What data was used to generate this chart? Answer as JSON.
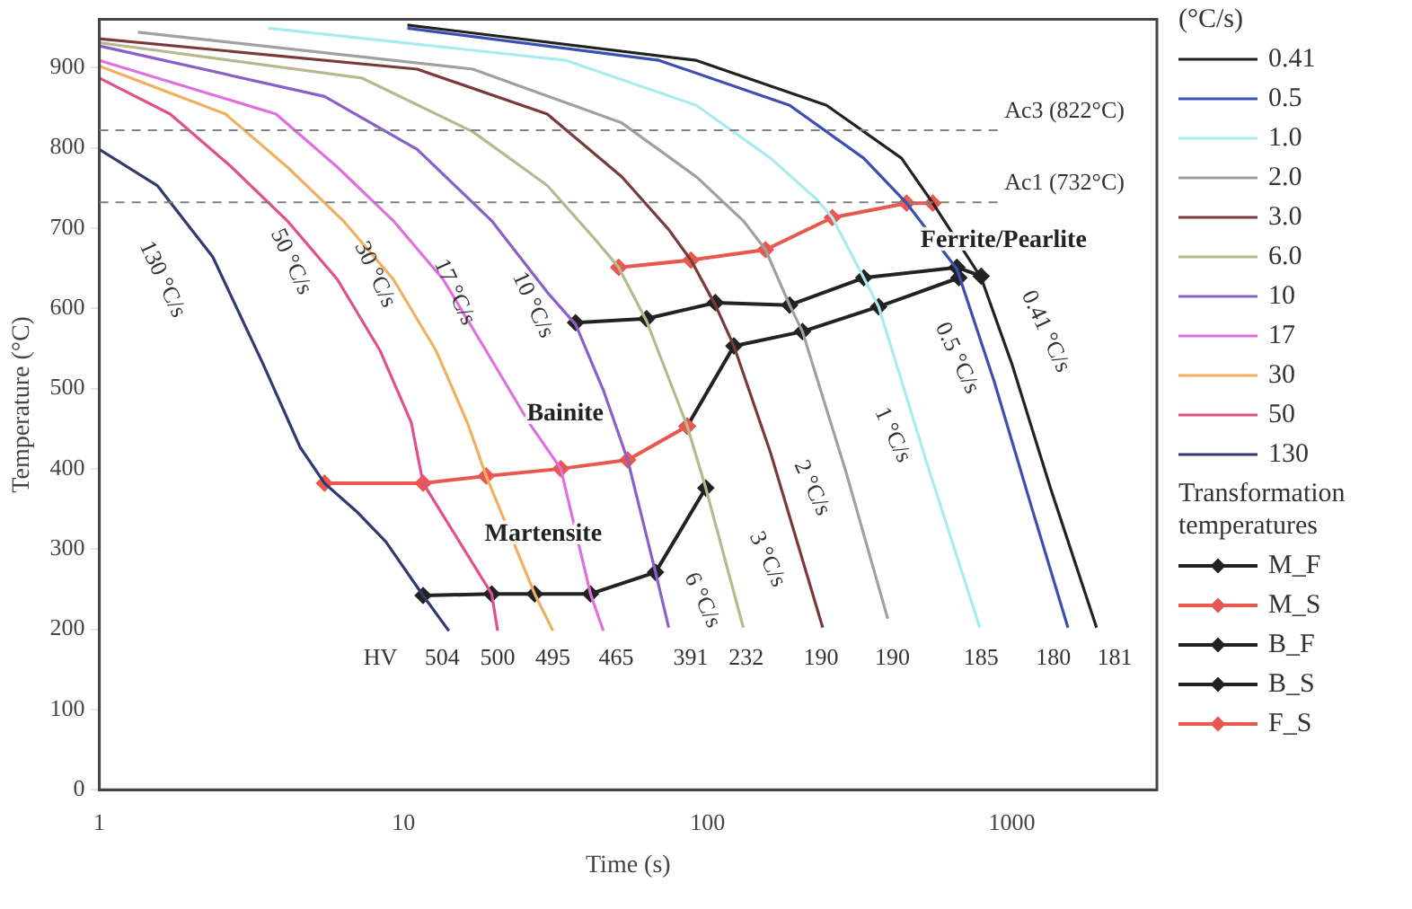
{
  "chart_data": {
    "type": "line",
    "xlabel": "Time (s)",
    "ylabel": "Temperature (°C)",
    "legend_title": "(°C/s)",
    "legend": "right",
    "log": "x",
    "xlim": [
      1,
      3000
    ],
    "xticks": [
      1,
      10,
      100,
      1000
    ],
    "ylim": [
      0,
      960
    ],
    "yticks": [
      0,
      100,
      200,
      300,
      400,
      500,
      600,
      700,
      800,
      900
    ],
    "ref_lines": [
      {
        "axis": "y",
        "value": 822,
        "label": "Ac3 (822°C)",
        "color": "#808080",
        "line_style": "dashed"
      },
      {
        "axis": "y",
        "value": 732,
        "label": "Ac1 (732°C)",
        "color": "#808080",
        "line_style": "dashed"
      }
    ],
    "series": [
      {
        "name": "0.41",
        "color": "#222222",
        "marker": "none",
        "x": [
          10.3,
          91.7,
          246,
          434,
          550,
          793,
          1000,
          1340,
          1900
        ],
        "values": [
          953,
          909,
          853,
          787,
          731,
          638,
          531,
          376,
          202
        ]
      },
      {
        "name": "0.5",
        "color": "#3a4fb0",
        "marker": "none",
        "x": [
          10.3,
          69.2,
          186,
          326,
          451,
          660,
          875,
          1160,
          1530
        ],
        "values": [
          949,
          909,
          853,
          787,
          731,
          649,
          509,
          353,
          202
        ]
      },
      {
        "name": "1.0",
        "color": "#a8ecf0",
        "marker": "none",
        "x": [
          3.6,
          34.2,
          91.7,
          161,
          228,
          257,
          326,
          365,
          535,
          785
        ],
        "values": [
          949,
          909,
          853,
          787,
          736,
          713,
          638,
          602,
          398,
          202
        ]
      },
      {
        "name": "2.0",
        "color": "#a0a0a0",
        "marker": "none",
        "x": [
          1.34,
          16.9,
          52.2,
          91.7,
          131,
          155,
          186,
          205,
          284,
          391
        ],
        "values": [
          944,
          898,
          831,
          764,
          709,
          673,
          604,
          571,
          398,
          213
        ]
      },
      {
        "name": "3.0",
        "color": "#7a3a3a",
        "marker": "none",
        "x": [
          1,
          11.1,
          29.7,
          52.2,
          74.5,
          88.1,
          106,
          122,
          161,
          239
        ],
        "values": [
          936,
          898,
          842,
          764,
          698,
          660,
          604,
          553,
          420,
          202
        ]
      },
      {
        "name": "6.0",
        "color": "#b8b890",
        "marker": "none",
        "x": [
          1,
          7.29,
          16.9,
          29.7,
          42.4,
          51.0,
          63.0,
          85.7,
          98.6,
          131
        ],
        "values": [
          931,
          887,
          820,
          753,
          687,
          651,
          584,
          453,
          376,
          202
        ]
      },
      {
        "name": "10",
        "color": "#8a60c8",
        "marker": "none",
        "x": [
          1,
          5.5,
          11.1,
          19.5,
          29.7,
          36.8,
          45.4,
          54.6,
          67.4,
          74.5
        ],
        "values": [
          927,
          864,
          798,
          709,
          620,
          580,
          498,
          411,
          271,
          202
        ]
      },
      {
        "name": "17",
        "color": "#e070e0",
        "marker": "none",
        "x": [
          1,
          3.81,
          6.06,
          9.26,
          13.5,
          18.7,
          25.8,
          32.9,
          41.2,
          45.4
        ],
        "values": [
          909,
          842,
          776,
          709,
          636,
          547,
          458,
          400,
          244,
          198
        ]
      },
      {
        "name": "30",
        "color": "#f0b060",
        "marker": "none",
        "x": [
          1,
          2.6,
          4.15,
          6.34,
          9.26,
          12.8,
          16.2,
          18.7,
          27.0,
          31.0
        ],
        "values": [
          902,
          842,
          776,
          709,
          636,
          547,
          458,
          391,
          244,
          198
        ]
      },
      {
        "name": "50",
        "color": "#e0508a",
        "marker": "none",
        "x": [
          1,
          1.71,
          2.72,
          4.15,
          6.06,
          8.38,
          10.6,
          11.6,
          19.5,
          20.4
        ],
        "values": [
          887,
          842,
          776,
          709,
          636,
          547,
          458,
          382,
          244,
          198
        ]
      },
      {
        "name": "130",
        "color": "#303a70",
        "marker": "none",
        "x": [
          1,
          1.55,
          2.36,
          3.45,
          4.57,
          5.5,
          7.0,
          8.75,
          11.6,
          14.1
        ],
        "values": [
          798,
          753,
          664,
          531,
          427,
          382,
          347,
          309,
          242,
          198
        ]
      },
      {
        "name": "M_F",
        "color": "#222222",
        "marker": "diamond",
        "x": [
          11.6,
          19.5,
          27.0,
          41.2,
          67.4,
          98.6
        ],
        "values": [
          242,
          244,
          244,
          244,
          271,
          376
        ]
      },
      {
        "name": "M_S",
        "color": "#e8584f",
        "marker": "diamond",
        "x": [
          5.5,
          11.6,
          18.7,
          32.9,
          54.6,
          85.7
        ],
        "values": [
          382,
          382,
          391,
          400,
          411,
          453
        ]
      },
      {
        "name": "B_F",
        "color": "#222222",
        "marker": "diamond",
        "x": [
          85.7,
          122,
          205,
          365,
          670
        ],
        "values": [
          453,
          553,
          571,
          602,
          638
        ]
      },
      {
        "name": "B_S",
        "color": "#222222",
        "marker": "diamond",
        "x": [
          36.8,
          63.0,
          106,
          186,
          326,
          660,
          793
        ],
        "values": [
          582,
          587,
          607,
          604,
          638,
          651,
          640
        ]
      },
      {
        "name": "F_S",
        "color": "#e8584f",
        "marker": "diamond",
        "x": [
          51.0,
          88.1,
          155,
          257,
          451,
          550
        ],
        "values": [
          651,
          660,
          673,
          713,
          731,
          731
        ]
      }
    ],
    "annotations": [
      "130 °C/s",
      "50 °C/s",
      "30 °C/s",
      "17 °C/s",
      "10 °C/s",
      "6 °C/s",
      "3 °C/s",
      "2 °C/s",
      "1 °C/s",
      "0.5 °C/s",
      "0.41 °C/s",
      "Bainite",
      "Martensite",
      "Ferrite/Pearlite",
      "HV",
      "504",
      "500",
      "495",
      "465",
      "391",
      "232",
      "190",
      "190",
      "185",
      "180",
      "181",
      "Transformation temperatures"
    ]
  }
}
